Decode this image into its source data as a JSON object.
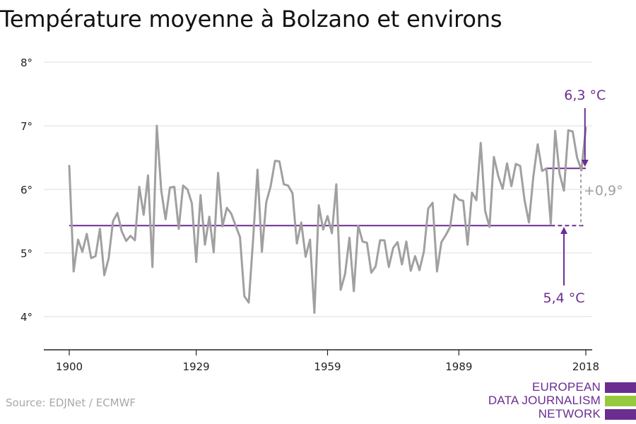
{
  "title": "Température moyenne à Bolzano et environs",
  "source": "Source: EDJNet / ECMWF",
  "logo": {
    "lines": [
      "EUROPEAN",
      "DATA JOURNALISM",
      "NETWORK"
    ],
    "colors": [
      "#6b2d90",
      "#97c93d",
      "#6b2d90"
    ]
  },
  "colors": {
    "series": "#a0a0a0",
    "accent": "#6b2d90",
    "grid": "#dddddd",
    "axis": "#222222",
    "diff": "#a0a0a0"
  },
  "chart_data": {
    "type": "line",
    "title": "Température moyenne à Bolzano et environs",
    "xlabel": "",
    "ylabel": "",
    "xlim": [
      1900,
      2018
    ],
    "ylim": [
      3.5,
      8.4
    ],
    "y_ticks": [
      4,
      5,
      6,
      7,
      8
    ],
    "y_tick_labels": [
      "4°",
      "5°",
      "6°",
      "7°",
      "8°"
    ],
    "x_ticks": [
      1900,
      1929,
      1959,
      1989,
      2018
    ],
    "x_tick_labels": [
      "1900",
      "1929",
      "1959",
      "1989",
      "2018"
    ],
    "grid": "horizontal",
    "x": [
      1900,
      1901,
      1902,
      1903,
      1904,
      1905,
      1906,
      1907,
      1908,
      1909,
      1910,
      1911,
      1912,
      1913,
      1914,
      1915,
      1916,
      1917,
      1918,
      1919,
      1920,
      1921,
      1922,
      1923,
      1924,
      1925,
      1926,
      1927,
      1928,
      1929,
      1930,
      1931,
      1932,
      1933,
      1934,
      1935,
      1936,
      1937,
      1938,
      1939,
      1940,
      1941,
      1942,
      1943,
      1944,
      1945,
      1946,
      1947,
      1948,
      1949,
      1950,
      1951,
      1952,
      1953,
      1954,
      1955,
      1956,
      1957,
      1958,
      1959,
      1960,
      1961,
      1962,
      1963,
      1964,
      1965,
      1966,
      1967,
      1968,
      1969,
      1970,
      1971,
      1972,
      1973,
      1974,
      1975,
      1976,
      1977,
      1978,
      1979,
      1980,
      1981,
      1982,
      1983,
      1984,
      1985,
      1986,
      1987,
      1988,
      1989,
      1990,
      1991,
      1992,
      1993,
      1994,
      1995,
      1996,
      1997,
      1998,
      1999,
      2000,
      2001,
      2002,
      2003,
      2004,
      2005,
      2006,
      2007,
      2008,
      2009,
      2010,
      2011,
      2012,
      2013,
      2014,
      2015,
      2016,
      2017,
      2018
    ],
    "series": [
      {
        "values": [
          6.37,
          4.71,
          5.21,
          5.02,
          5.3,
          4.92,
          4.95,
          5.38,
          4.65,
          4.92,
          5.5,
          5.63,
          5.34,
          5.19,
          5.27,
          5.2,
          6.04,
          5.6,
          6.22,
          4.78,
          7.0,
          5.99,
          5.53,
          6.03,
          6.04,
          5.38,
          6.06,
          6.0,
          5.78,
          4.86,
          5.91,
          5.13,
          5.57,
          5.01,
          6.26,
          5.42,
          5.71,
          5.62,
          5.43,
          5.25,
          4.32,
          4.22,
          5.22,
          6.31,
          5.02,
          5.8,
          6.05,
          6.45,
          6.44,
          6.08,
          6.06,
          5.94,
          5.15,
          5.48,
          4.94,
          5.21,
          4.06,
          5.75,
          5.37,
          5.58,
          5.31,
          6.08,
          4.42,
          4.67,
          5.24,
          4.4,
          5.43,
          5.18,
          5.16,
          4.69,
          4.79,
          5.2,
          5.2,
          4.78,
          5.08,
          5.17,
          4.82,
          5.18,
          4.72,
          4.95,
          4.73,
          5.02,
          5.7,
          5.79,
          4.71,
          5.17,
          5.28,
          5.41,
          5.92,
          5.84,
          5.82,
          5.13,
          5.95,
          5.83,
          6.73,
          5.66,
          5.41,
          6.51,
          6.21,
          6.01,
          6.41,
          6.05,
          6.4,
          6.37,
          5.83,
          5.48,
          6.2,
          6.71,
          6.29,
          6.33,
          5.46,
          6.92,
          6.25,
          5.98,
          6.93,
          6.91,
          6.5,
          6.3,
          6.97
        ]
      }
    ],
    "reference_lines": [
      {
        "label": "5,4 °C",
        "value": 5.43,
        "solid_from": 1900,
        "solid_to": 2010,
        "dashed_to": 2018
      },
      {
        "label": "6,3 °C",
        "value": 6.33,
        "from": 2009,
        "to": 2018
      }
    ],
    "annotations": {
      "difference": "+0,9°"
    }
  }
}
